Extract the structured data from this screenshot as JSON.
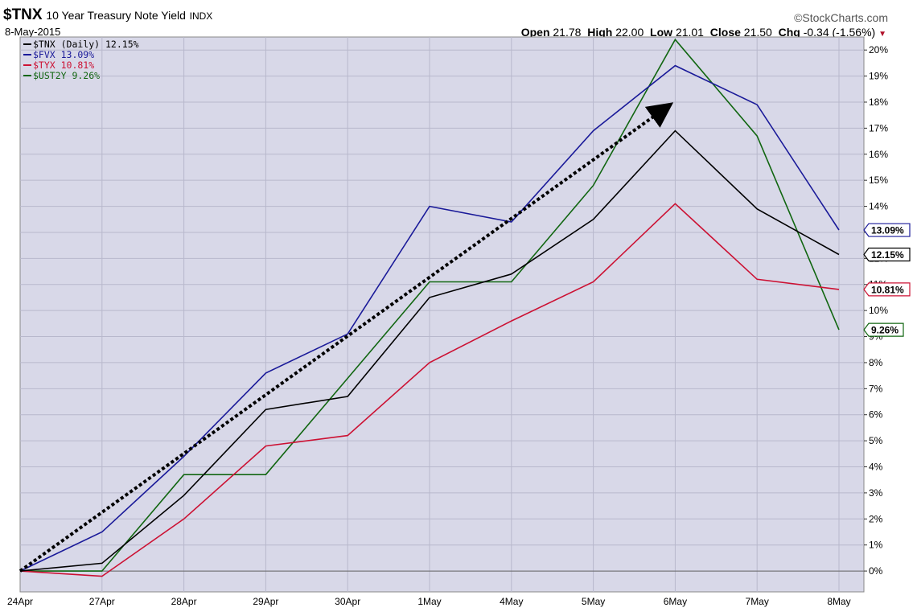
{
  "header": {
    "symbol": "$TNX",
    "name": "10 Year Treasury Note Yield",
    "exchange": "INDX",
    "date": "8-May-2015",
    "brand": "StockCharts.com",
    "open_label": "Open",
    "open": "21.78",
    "high_label": "High",
    "high": "22.00",
    "low_label": "Low",
    "low": "21.01",
    "close_label": "Close",
    "close": "21.50",
    "chg_label": "Chg",
    "chg": "-0.34 (-1.56%)"
  },
  "legend": [
    {
      "text": "$TNX (Daily) 12.15%",
      "color": "#000000"
    },
    {
      "text": "$FVX 13.09%",
      "color": "#1a1a99"
    },
    {
      "text": "$TYX 10.81%",
      "color": "#cc1133"
    },
    {
      "text": "$UST2Y 9.26%",
      "color": "#116611"
    }
  ],
  "colors": {
    "plot_bg": "#d8d8e8",
    "grid": "#b8b8cc",
    "arrow": "#000000"
  },
  "chart_data": {
    "type": "line",
    "categories": [
      "24Apr",
      "27Apr",
      "28Apr",
      "29Apr",
      "30Apr",
      "1May",
      "4May",
      "5May",
      "6May",
      "7May",
      "8May"
    ],
    "y_ticks": [
      "0%",
      "1%",
      "2%",
      "3%",
      "4%",
      "5%",
      "6%",
      "7%",
      "8%",
      "9%",
      "10%",
      "11%",
      "12%",
      "13%",
      "14%",
      "15%",
      "16%",
      "17%",
      "18%",
      "19%",
      "20%"
    ],
    "ylim": [
      -0.8,
      20.5
    ],
    "grid": true,
    "legend_position": "top-left",
    "series": [
      {
        "name": "$UST2Y",
        "color": "#116611",
        "end_label": "9.26%",
        "values": [
          0,
          0,
          3.7,
          3.7,
          7.4,
          11.1,
          11.1,
          14.8,
          20.4,
          16.7,
          9.26
        ]
      },
      {
        "name": "$TYX",
        "color": "#cc1133",
        "end_label": "10.81%",
        "values": [
          0,
          -0.2,
          2.0,
          4.8,
          5.2,
          8.0,
          9.6,
          11.1,
          14.1,
          11.2,
          10.81
        ]
      },
      {
        "name": "$FVX",
        "color": "#1a1a99",
        "end_label": "13.09%",
        "values": [
          0,
          1.5,
          4.4,
          7.6,
          9.1,
          14.0,
          13.4,
          16.9,
          19.4,
          17.9,
          13.09
        ]
      },
      {
        "name": "$TNX (Daily)",
        "color": "#000000",
        "end_label": "12.15%",
        "values": [
          0,
          0.3,
          2.9,
          6.2,
          6.7,
          10.5,
          11.4,
          13.5,
          16.9,
          13.9,
          12.15
        ]
      }
    ],
    "annotation": {
      "type": "dotted-arrow",
      "from": {
        "x": "24Apr",
        "y": 0
      },
      "to": {
        "x": "6May",
        "y": 17.9
      }
    }
  }
}
